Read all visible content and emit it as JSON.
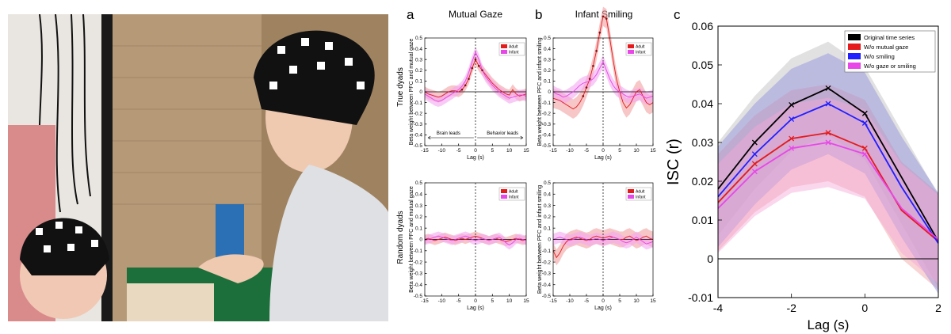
{
  "photo": {
    "description_icon": "photo-mother-infant-eeg-caps"
  },
  "panel_labels": [
    "a",
    "b",
    "c"
  ],
  "column_titles": [
    "Mutual Gaze",
    "Infant Smiling"
  ],
  "row_titles": [
    "True dyads",
    "Random dyads"
  ],
  "colors": {
    "adult": "#e41a1c",
    "infant": "#e846e8",
    "black": "#000000",
    "blue": "#1f1fff",
    "gray_band": "#bdbdbd",
    "blue_band": "#8f8fe0",
    "pink_band": "#f5a6d8"
  },
  "chart_data": [
    {
      "id": "a_true",
      "type": "line",
      "title": "Mutual Gaze",
      "xlabel": "Lag (s)",
      "ylabel": "Beta weight between PFC and mutual gaze",
      "xlim": [
        -15,
        15
      ],
      "ylim": [
        -0.5,
        0.5
      ],
      "xticks": [
        -15,
        -10,
        -5,
        0,
        5,
        10,
        15
      ],
      "yticks": [
        -0.5,
        -0.4,
        -0.3,
        -0.2,
        -0.1,
        0,
        0.1,
        0.2,
        0.3,
        0.4,
        0.5
      ],
      "legend": [
        "Adult",
        "Infant"
      ],
      "legend_position": "top-right",
      "annotations": [
        "Brain leads",
        "Behavior leads"
      ],
      "x": [
        -15,
        -14,
        -13,
        -12,
        -11,
        -10,
        -9,
        -8,
        -7,
        -6,
        -5,
        -4,
        -3,
        -2,
        -1,
        0,
        1,
        2,
        3,
        4,
        5,
        6,
        7,
        8,
        9,
        10,
        11,
        12,
        13,
        14,
        15
      ],
      "series": [
        {
          "name": "Adult",
          "values": [
            0.0,
            -0.02,
            -0.03,
            -0.04,
            -0.05,
            -0.04,
            -0.02,
            0.0,
            0.01,
            0.01,
            0.0,
            0.02,
            0.06,
            0.12,
            0.22,
            0.3,
            0.24,
            0.2,
            0.16,
            0.12,
            0.08,
            0.05,
            0.02,
            0.0,
            -0.02,
            -0.03,
            0.02,
            -0.02,
            -0.04,
            -0.03,
            -0.02
          ],
          "band": 0.05
        },
        {
          "name": "Infant",
          "values": [
            -0.02,
            -0.04,
            -0.06,
            -0.08,
            -0.09,
            -0.08,
            -0.06,
            -0.04,
            -0.02,
            0.0,
            0.02,
            0.05,
            0.1,
            0.18,
            0.28,
            0.37,
            0.3,
            0.2,
            0.14,
            0.1,
            0.06,
            0.03,
            0.0,
            -0.02,
            -0.04,
            -0.06,
            -0.05,
            -0.04,
            -0.03,
            -0.03,
            -0.04
          ],
          "band": 0.05
        }
      ]
    },
    {
      "id": "b_true",
      "type": "line",
      "title": "Infant Smiling",
      "xlabel": "Lag (s)",
      "ylabel": "Beta weight between PFC and infant smiling",
      "xlim": [
        -15,
        15
      ],
      "ylim": [
        -0.5,
        0.5
      ],
      "xticks": [
        -15,
        -10,
        -5,
        0,
        5,
        10,
        15
      ],
      "yticks": [
        -0.5,
        -0.4,
        -0.3,
        -0.2,
        -0.1,
        0,
        0.1,
        0.2,
        0.3,
        0.4,
        0.5
      ],
      "legend": [
        "Adult",
        "Infant"
      ],
      "legend_position": "top-right",
      "x": [
        -15,
        -14,
        -13,
        -12,
        -11,
        -10,
        -9,
        -8,
        -7,
        -6,
        -5,
        -4,
        -3,
        -2,
        -1,
        0,
        1,
        2,
        3,
        4,
        5,
        6,
        7,
        8,
        9,
        10,
        11,
        12,
        13,
        14,
        15
      ],
      "series": [
        {
          "name": "Adult",
          "values": [
            -0.06,
            -0.07,
            -0.08,
            -0.1,
            -0.12,
            -0.14,
            -0.16,
            -0.14,
            -0.1,
            -0.04,
            0.04,
            0.12,
            0.24,
            0.38,
            0.55,
            0.7,
            0.68,
            0.5,
            0.3,
            0.12,
            0.0,
            -0.1,
            -0.15,
            -0.12,
            -0.06,
            0.0,
            0.02,
            -0.04,
            -0.1,
            -0.12,
            -0.1
          ],
          "band": 0.09
        },
        {
          "name": "Infant",
          "values": [
            0.0,
            -0.02,
            -0.03,
            -0.05,
            -0.04,
            -0.02,
            0.0,
            0.03,
            0.06,
            0.08,
            0.09,
            0.1,
            0.12,
            0.16,
            0.22,
            0.28,
            0.2,
            0.12,
            0.06,
            0.02,
            0.0,
            -0.02,
            -0.04,
            -0.05,
            -0.04,
            -0.03,
            -0.02,
            -0.04,
            -0.06,
            -0.05,
            -0.04
          ],
          "band": 0.06
        }
      ]
    },
    {
      "id": "a_random",
      "type": "line",
      "xlabel": "Lag (s)",
      "ylabel": "Beta weight between PFC and mutual gaze",
      "xlim": [
        -15,
        15
      ],
      "ylim": [
        -0.5,
        0.5
      ],
      "xticks": [
        -15,
        -10,
        -5,
        0,
        5,
        10,
        15
      ],
      "yticks": [
        -0.5,
        -0.4,
        -0.3,
        -0.2,
        -0.1,
        0,
        0.1,
        0.2,
        0.3,
        0.4,
        0.5
      ],
      "legend": [
        "Adult",
        "Infant"
      ],
      "legend_position": "top-right",
      "x": [
        -15,
        -14,
        -13,
        -12,
        -11,
        -10,
        -9,
        -8,
        -7,
        -6,
        -5,
        -4,
        -3,
        -2,
        -1,
        0,
        1,
        2,
        3,
        4,
        5,
        6,
        7,
        8,
        9,
        10,
        11,
        12,
        13,
        14,
        15
      ],
      "series": [
        {
          "name": "Adult",
          "values": [
            0.0,
            0.01,
            0.0,
            -0.01,
            0.0,
            0.01,
            0.02,
            0.01,
            0.0,
            -0.01,
            0.0,
            0.01,
            0.0,
            0.01,
            0.02,
            0.03,
            0.02,
            0.01,
            0.0,
            -0.01,
            0.0,
            0.01,
            0.0,
            -0.01,
            -0.02,
            -0.01,
            0.0,
            0.01,
            0.0,
            -0.01,
            0.0
          ],
          "band": 0.04
        },
        {
          "name": "Infant",
          "values": [
            -0.01,
            0.0,
            0.01,
            0.02,
            0.03,
            0.02,
            0.01,
            0.0,
            -0.01,
            0.0,
            0.01,
            0.02,
            0.03,
            0.02,
            0.0,
            -0.01,
            0.0,
            0.01,
            0.0,
            -0.01,
            0.0,
            0.01,
            0.02,
            0.0,
            -0.03,
            -0.05,
            -0.03,
            0.0,
            0.01,
            0.0,
            -0.01
          ],
          "band": 0.04
        }
      ]
    },
    {
      "id": "b_random",
      "type": "line",
      "xlabel": "Lag (s)",
      "ylabel": "Beta weight between PFC and infant smiling",
      "xlim": [
        -15,
        15
      ],
      "ylim": [
        -0.5,
        0.5
      ],
      "xticks": [
        -15,
        -10,
        -5,
        0,
        5,
        10,
        15
      ],
      "yticks": [
        -0.5,
        -0.4,
        -0.3,
        -0.2,
        -0.1,
        0,
        0.1,
        0.2,
        0.3,
        0.4,
        0.5
      ],
      "legend": [
        "Adult",
        "Infant"
      ],
      "legend_position": "top-right",
      "x": [
        -15,
        -14,
        -13,
        -12,
        -11,
        -10,
        -9,
        -8,
        -7,
        -6,
        -5,
        -4,
        -3,
        -2,
        -1,
        0,
        1,
        2,
        3,
        4,
        5,
        6,
        7,
        8,
        9,
        10,
        11,
        12,
        13,
        14,
        15
      ],
      "series": [
        {
          "name": "Adult",
          "values": [
            -0.1,
            -0.16,
            -0.12,
            -0.06,
            -0.02,
            0.0,
            0.01,
            0.02,
            0.01,
            0.0,
            -0.01,
            0.0,
            0.02,
            0.03,
            0.02,
            0.01,
            0.02,
            0.03,
            0.02,
            0.01,
            0.0,
            0.0,
            0.02,
            0.03,
            0.01,
            -0.01,
            0.0,
            0.02,
            0.03,
            0.01,
            0.0
          ],
          "band": 0.07
        },
        {
          "name": "Infant",
          "values": [
            0.0,
            0.01,
            0.02,
            0.01,
            0.0,
            -0.01,
            0.0,
            0.01,
            0.02,
            0.01,
            0.0,
            -0.01,
            0.0,
            0.01,
            0.0,
            -0.01,
            0.0,
            0.01,
            0.02,
            0.01,
            0.0,
            -0.02,
            -0.03,
            -0.02,
            0.0,
            0.02,
            0.0,
            -0.02,
            -0.04,
            -0.03,
            -0.02
          ],
          "band": 0.05
        }
      ]
    },
    {
      "id": "c",
      "type": "line",
      "xlabel": "Lag (s)",
      "ylabel": "ISC (r)",
      "xlim": [
        -4,
        2
      ],
      "ylim": [
        -0.01,
        0.06
      ],
      "xticks": [
        -4,
        -2,
        0,
        2
      ],
      "yticks": [
        -0.01,
        0,
        0.01,
        0.02,
        0.03,
        0.04,
        0.05,
        0.06
      ],
      "legend_position": "top-right",
      "x": [
        -4,
        -3,
        -2,
        -1,
        0,
        1,
        2
      ],
      "series": [
        {
          "name": "Original time series",
          "values": [
            0.018,
            0.03,
            0.0397,
            0.044,
            0.0375,
            0.021,
            0.0045
          ],
          "band": 0.012,
          "markers": [
            -3,
            -2,
            -1,
            0
          ]
        },
        {
          "name": "W/o mutual gaze",
          "values": [
            0.0145,
            0.0245,
            0.031,
            0.0325,
            0.0285,
            0.0125,
            0.0045
          ],
          "band": 0.0125,
          "markers": [
            -3,
            -2,
            -1,
            0
          ]
        },
        {
          "name": "W/o smiling",
          "values": [
            0.016,
            0.027,
            0.036,
            0.04,
            0.035,
            0.0185,
            0.004
          ],
          "band": 0.013,
          "markers": [
            -3,
            -2,
            -1,
            0
          ]
        },
        {
          "name": "W/o gaze or smiling",
          "values": [
            0.013,
            0.0225,
            0.0285,
            0.03,
            0.027,
            0.013,
            0.005
          ],
          "band": 0.0115,
          "markers": [
            -3,
            -2,
            -1,
            0
          ]
        }
      ]
    }
  ]
}
